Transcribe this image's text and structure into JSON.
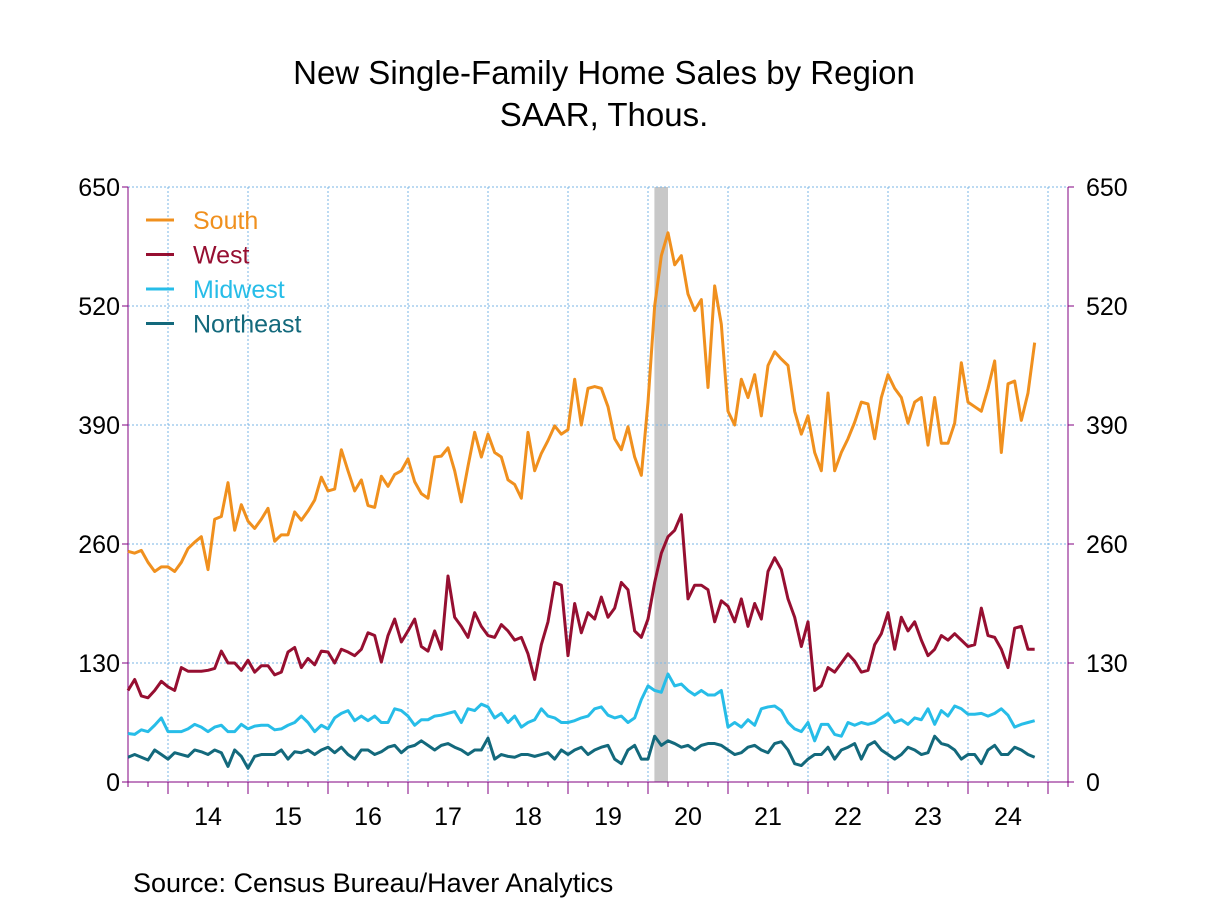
{
  "chart_data": {
    "type": "line",
    "title": "New Single-Family Home Sales by Region",
    "subtitle": "SAAR, Thous.",
    "source": "Source:  Census Bureau/Haver Analytics",
    "start": "2013-07",
    "ylim": [
      0,
      650
    ],
    "yticks": [
      0,
      130,
      260,
      390,
      520,
      650
    ],
    "ytick_labels": [
      "0",
      "130",
      "260",
      "390",
      "520",
      "650"
    ],
    "xlim": [
      2013.5,
      2025.25
    ],
    "year_ticks": [
      2014,
      2015,
      2016,
      2017,
      2018,
      2019,
      2020,
      2021,
      2022,
      2023,
      2024,
      2025
    ],
    "x_labels": [
      {
        "label": "14",
        "x": 2014.5
      },
      {
        "label": "15",
        "x": 2015.5
      },
      {
        "label": "16",
        "x": 2016.5
      },
      {
        "label": "17",
        "x": 2017.5
      },
      {
        "label": "18",
        "x": 2018.5
      },
      {
        "label": "19",
        "x": 2019.5
      },
      {
        "label": "20",
        "x": 2020.5
      },
      {
        "label": "21",
        "x": 2021.5
      },
      {
        "label": "22",
        "x": 2022.5
      },
      {
        "label": "23",
        "x": 2023.5
      },
      {
        "label": "24",
        "x": 2024.5
      }
    ],
    "recession": {
      "start": 2020.08,
      "end": 2020.25,
      "color": "#c8c8c8"
    },
    "grid": true,
    "legend": "top-left",
    "series": [
      {
        "name": "South",
        "color": "#f0901e",
        "values": [
          252,
          250,
          253,
          240,
          230,
          235,
          235,
          230,
          240,
          255,
          262,
          268,
          232,
          287,
          290,
          327,
          275,
          303,
          285,
          277,
          287,
          299,
          263,
          270,
          270,
          295,
          286,
          296,
          308,
          333,
          318,
          320,
          363,
          340,
          318,
          330,
          302,
          300,
          334,
          323,
          336,
          340,
          353,
          328,
          315,
          310,
          355,
          356,
          365,
          340,
          306,
          345,
          382,
          355,
          380,
          360,
          355,
          330,
          325,
          310,
          382,
          340,
          359,
          373,
          389,
          380,
          385,
          440,
          390,
          430,
          432,
          430,
          410,
          375,
          363,
          388,
          355,
          335,
          415,
          520,
          575,
          600,
          565,
          575,
          533,
          515,
          527,
          431,
          542,
          500,
          405,
          390,
          440,
          420,
          445,
          400,
          455,
          470,
          462,
          455,
          405,
          380,
          400,
          360,
          340,
          425,
          340,
          360,
          375,
          393,
          415,
          413,
          375,
          420,
          445,
          430,
          420,
          392,
          415,
          420,
          368,
          420,
          370,
          370,
          392,
          458,
          415,
          410,
          405,
          430,
          460,
          360,
          435,
          438,
          395,
          425,
          480
        ]
      },
      {
        "name": "West",
        "color": "#960f31",
        "values": [
          100,
          112,
          94,
          92,
          100,
          110,
          104,
          100,
          125,
          121,
          121,
          121,
          122,
          124,
          143,
          130,
          130,
          122,
          133,
          120,
          127,
          127,
          117,
          120,
          142,
          147,
          125,
          135,
          128,
          143,
          142,
          130,
          145,
          142,
          138,
          145,
          163,
          160,
          131,
          160,
          178,
          153,
          165,
          178,
          148,
          143,
          165,
          145,
          225,
          180,
          170,
          158,
          185,
          170,
          160,
          158,
          172,
          165,
          155,
          158,
          140,
          112,
          150,
          175,
          218,
          215,
          138,
          195,
          163,
          185,
          178,
          202,
          180,
          190,
          218,
          210,
          165,
          158,
          178,
          218,
          250,
          268,
          275,
          292,
          200,
          215,
          215,
          210,
          175,
          198,
          192,
          175,
          200,
          170,
          195,
          178,
          230,
          245,
          232,
          200,
          180,
          148,
          175,
          100,
          105,
          125,
          120,
          130,
          140,
          132,
          120,
          122,
          150,
          162,
          185,
          145,
          180,
          165,
          175,
          155,
          138,
          145,
          160,
          155,
          162,
          155,
          148,
          150,
          190,
          160,
          158,
          145,
          125,
          168,
          170,
          145,
          145
        ]
      },
      {
        "name": "Midwest",
        "color": "#27bde8",
        "values": [
          53,
          52,
          57,
          55,
          62,
          70,
          55,
          55,
          55,
          58,
          63,
          60,
          55,
          60,
          62,
          55,
          55,
          63,
          58,
          61,
          62,
          62,
          57,
          58,
          62,
          65,
          72,
          65,
          55,
          62,
          58,
          70,
          75,
          78,
          67,
          72,
          67,
          72,
          65,
          65,
          80,
          78,
          72,
          62,
          68,
          68,
          72,
          73,
          75,
          77,
          65,
          80,
          78,
          85,
          82,
          70,
          75,
          65,
          72,
          60,
          65,
          68,
          80,
          72,
          70,
          65,
          65,
          67,
          70,
          72,
          80,
          82,
          73,
          70,
          72,
          65,
          70,
          90,
          105,
          100,
          98,
          118,
          105,
          107,
          100,
          95,
          100,
          95,
          95,
          100,
          60,
          65,
          60,
          68,
          62,
          80,
          82,
          83,
          78,
          65,
          58,
          55,
          65,
          45,
          63,
          63,
          52,
          50,
          65,
          62,
          65,
          63,
          65,
          70,
          75,
          65,
          68,
          63,
          70,
          68,
          80,
          63,
          78,
          72,
          83,
          80,
          74,
          74,
          75,
          72,
          75,
          80,
          73,
          60,
          63,
          65,
          67
        ]
      },
      {
        "name": "Northeast",
        "color": "#13697c",
        "values": [
          27,
          30,
          27,
          24,
          35,
          30,
          25,
          32,
          30,
          28,
          35,
          33,
          30,
          35,
          32,
          17,
          35,
          28,
          15,
          28,
          30,
          30,
          30,
          35,
          25,
          33,
          32,
          35,
          30,
          35,
          38,
          32,
          38,
          30,
          25,
          35,
          35,
          30,
          33,
          38,
          40,
          32,
          38,
          40,
          45,
          40,
          35,
          40,
          42,
          38,
          35,
          30,
          35,
          35,
          48,
          25,
          30,
          28,
          27,
          30,
          30,
          28,
          30,
          32,
          25,
          35,
          30,
          35,
          38,
          30,
          35,
          38,
          40,
          25,
          20,
          35,
          40,
          25,
          25,
          50,
          40,
          45,
          42,
          38,
          40,
          35,
          40,
          42,
          42,
          40,
          35,
          30,
          32,
          38,
          40,
          35,
          32,
          42,
          44,
          35,
          20,
          18,
          25,
          30,
          30,
          38,
          25,
          35,
          38,
          42,
          25,
          40,
          44,
          35,
          30,
          25,
          30,
          38,
          35,
          30,
          32,
          50,
          42,
          40,
          35,
          25,
          30,
          30,
          20,
          35,
          40,
          30,
          30,
          38,
          35,
          30,
          27
        ]
      }
    ]
  }
}
